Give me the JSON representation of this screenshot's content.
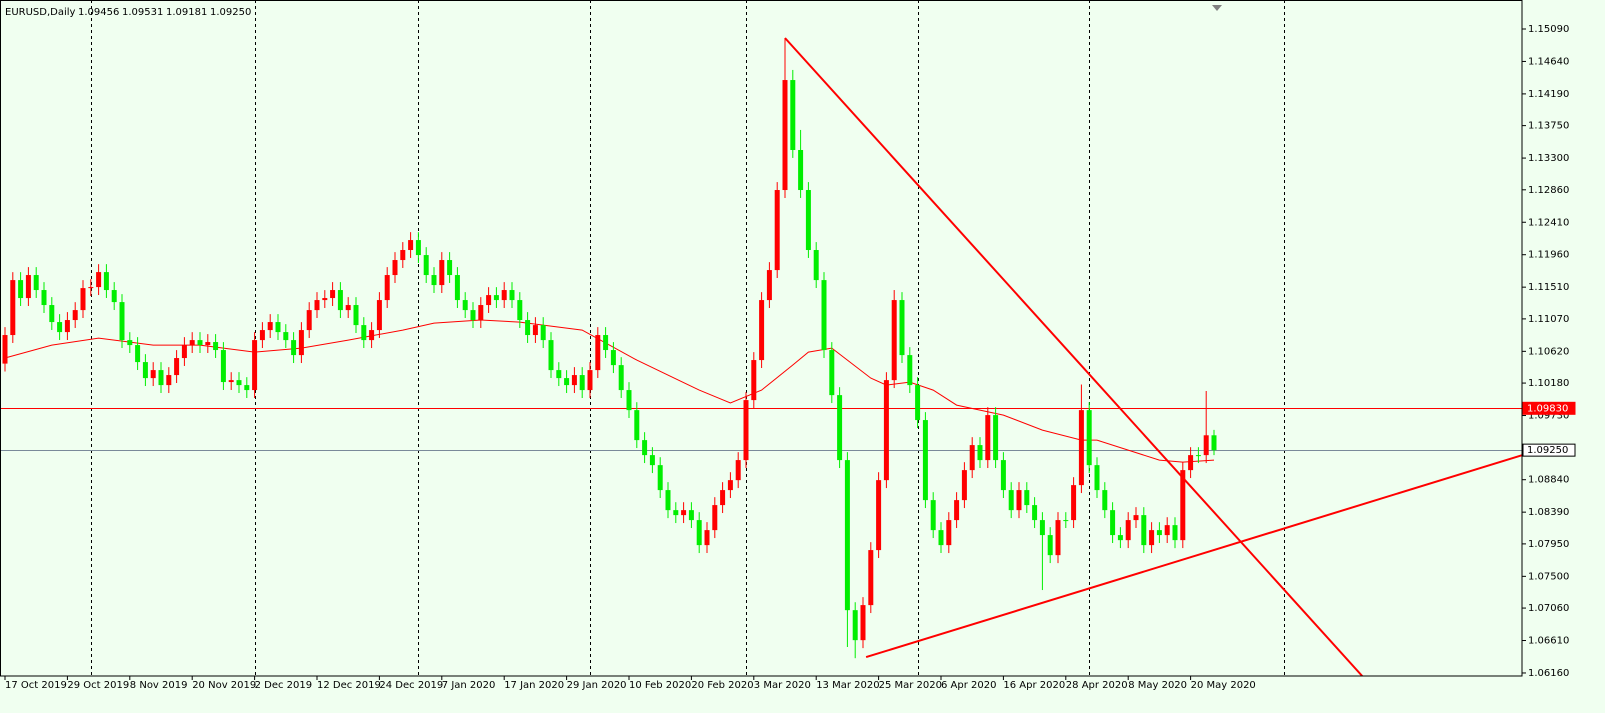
{
  "chart_data": {
    "type": "candlestick",
    "title": "EURUSD,Daily",
    "ohlc_labels": [
      "1.09456",
      "1.09531",
      "1.09181",
      "1.09250"
    ],
    "up_color": "#ff0000",
    "down_color": "#00ee00",
    "ylim": [
      1.06118,
      1.15492
    ],
    "yticks": [
      {
        "value": 1.1509,
        "label": "1.15090"
      },
      {
        "value": 1.1464,
        "label": "1.14640"
      },
      {
        "value": 1.1419,
        "label": "1.14190"
      },
      {
        "value": 1.1375,
        "label": "1.13750"
      },
      {
        "value": 1.133,
        "label": "1.13300"
      },
      {
        "value": 1.1286,
        "label": "1.12860"
      },
      {
        "value": 1.1241,
        "label": "1.12410"
      },
      {
        "value": 1.1196,
        "label": "1.11960"
      },
      {
        "value": 1.1151,
        "label": "1.11510"
      },
      {
        "value": 1.1107,
        "label": "1.11070"
      },
      {
        "value": 1.1062,
        "label": "1.10620"
      },
      {
        "value": 1.1018,
        "label": "1.10180"
      },
      {
        "value": 1.0973,
        "label": "1.09730"
      },
      {
        "value": 1.0884,
        "label": "1.08840"
      },
      {
        "value": 1.0839,
        "label": "1.08390"
      },
      {
        "value": 1.0795,
        "label": "1.07950"
      },
      {
        "value": 1.075,
        "label": "1.07500"
      },
      {
        "value": 1.0706,
        "label": "1.07060"
      },
      {
        "value": 1.0661,
        "label": "1.06610"
      },
      {
        "value": 1.0616,
        "label": "1.06160"
      }
    ],
    "separators": [
      11,
      32,
      53,
      75,
      95,
      117,
      139,
      164
    ],
    "categories": [
      "17 Oct 2019",
      null,
      null,
      null,
      null,
      null,
      null,
      null,
      "29 Oct 2019",
      null,
      null,
      null,
      null,
      null,
      null,
      null,
      "8 Nov 2019",
      null,
      null,
      null,
      null,
      null,
      null,
      null,
      "20 Nov 2019",
      null,
      null,
      null,
      null,
      null,
      null,
      null,
      "2 Dec 2019",
      null,
      null,
      null,
      null,
      null,
      null,
      null,
      "12 Dec 2019",
      null,
      null,
      null,
      null,
      null,
      null,
      null,
      "24 Dec 2019",
      null,
      null,
      null,
      null,
      null,
      null,
      null,
      "7 Jan 2020",
      null,
      null,
      null,
      null,
      null,
      null,
      null,
      "17 Jan 2020",
      null,
      null,
      null,
      null,
      null,
      null,
      null,
      "29 Jan 2020",
      null,
      null,
      null,
      null,
      null,
      null,
      null,
      "10 Feb 2020",
      null,
      null,
      null,
      null,
      null,
      null,
      null,
      "20 Feb 2020",
      null,
      null,
      null,
      null,
      null,
      null,
      null,
      "3 Mar 2020",
      null,
      null,
      null,
      null,
      null,
      null,
      null,
      "13 Mar 2020",
      null,
      null,
      null,
      null,
      null,
      null,
      null,
      "25 Mar 2020",
      null,
      null,
      null,
      null,
      null,
      null,
      null,
      "6 Apr 2020",
      null,
      null,
      null,
      null,
      null,
      null,
      null,
      "16 Apr 2020",
      null,
      null,
      null,
      null,
      null,
      null,
      null,
      "28 Apr 2020",
      null,
      null,
      null,
      null,
      null,
      null,
      null,
      "8 May 2020",
      null,
      null,
      null,
      null,
      null,
      null,
      null,
      "20 May 2020",
      null,
      null,
      null
    ],
    "open": [
      1.1045,
      1.10846,
      1.11608,
      1.11359,
      1.11678,
      1.1147,
      1.11262,
      1.11026,
      1.10887,
      1.11054,
      1.11192,
      1.11497,
      1.11511,
      1.11719,
      1.1147,
      1.11303,
      1.10776,
      1.10707,
      1.10471,
      1.10249,
      1.1036,
      1.10152,
      1.10291,
      1.10527,
      1.10707,
      1.10776,
      1.10707,
      1.10749,
      1.10638,
      1.10194,
      1.10221,
      1.10152,
      1.10083,
      1.10776,
      1.10915,
      1.11026,
      1.10887,
      1.10776,
      1.10568,
      1.10915,
      1.11192,
      1.11331,
      1.11359,
      1.1147,
      1.11192,
      1.11262,
      1.10984,
      1.10776,
      1.10915,
      1.11331,
      1.11678,
      1.11886,
      1.12025,
      1.12163,
      1.11955,
      1.11678,
      1.11539,
      1.11886,
      1.11678,
      1.11331,
      1.11192,
      1.11054,
      1.11262,
      1.114,
      1.11331,
      1.1147,
      1.11331,
      1.11054,
      1.10846,
      1.10984,
      1.10776,
      1.1036,
      1.10249,
      1.10152,
      1.10291,
      1.10083,
      1.1036,
      1.10846,
      1.10638,
      1.10429,
      1.10083,
      1.09805,
      1.09389,
      1.09181,
      1.09042,
      1.08696,
      1.08418,
      1.08349,
      1.08418,
      1.0828,
      1.07933,
      1.08141,
      1.08488,
      1.08696,
      1.08834,
      1.09112,
      1.09944,
      1.10499,
      1.11331,
      1.11747,
      1.12857,
      1.14382,
      1.13412,
      1.12857,
      1.12025,
      1.11608,
      1.10638,
      1.10013,
      1.09112,
      1.07031,
      1.06615,
      1.07101,
      1.07864,
      1.08834,
      1.10221,
      1.11331,
      1.10568,
      1.10152,
      1.09667,
      1.08557,
      1.08141,
      1.07933,
      1.0828,
      1.08557,
      1.08973,
      1.0932,
      1.09112,
      1.09736,
      1.09112,
      1.08696,
      1.08418,
      1.08696,
      1.08488,
      1.0828,
      1.08072,
      1.07794,
      1.0828,
      1.0828,
      1.08765,
      1.09805,
      1.09042,
      1.08696,
      1.08418,
      1.08072,
      1.08002,
      1.0828,
      1.08349,
      1.07933,
      1.08141,
      1.08072,
      1.0821,
      1.08002,
      1.08973,
      1.09181,
      1.09181,
      1.09456
    ],
    "high": [
      1.10956,
      1.11718,
      1.11718,
      1.11788,
      1.11788,
      1.1158,
      1.11372,
      1.11136,
      1.11164,
      1.11302,
      1.11607,
      1.11621,
      1.11829,
      1.11829,
      1.1158,
      1.11413,
      1.10886,
      1.10817,
      1.10581,
      1.1047,
      1.1047,
      1.10401,
      1.10637,
      1.10817,
      1.10886,
      1.10886,
      1.10859,
      1.10859,
      1.10748,
      1.10331,
      1.10331,
      1.10262,
      1.10886,
      1.11025,
      1.11136,
      1.11136,
      1.10997,
      1.10886,
      1.11025,
      1.11302,
      1.11441,
      1.11469,
      1.1158,
      1.1158,
      1.11372,
      1.11372,
      1.11094,
      1.11025,
      1.11441,
      1.11788,
      1.11996,
      1.12135,
      1.12273,
      1.12273,
      1.12065,
      1.11788,
      1.11996,
      1.11996,
      1.11788,
      1.11441,
      1.11302,
      1.11372,
      1.1151,
      1.1151,
      1.1158,
      1.1158,
      1.11441,
      1.11164,
      1.11094,
      1.11094,
      1.10886,
      1.1047,
      1.10359,
      1.10401,
      1.10401,
      1.1047,
      1.10956,
      1.10956,
      1.10748,
      1.10539,
      1.10193,
      1.09915,
      1.09499,
      1.09291,
      1.09152,
      1.08806,
      1.08528,
      1.08528,
      1.08528,
      1.0839,
      1.08251,
      1.08598,
      1.08806,
      1.08944,
      1.09222,
      1.10054,
      1.10609,
      1.11441,
      1.11857,
      1.12967,
      1.14965,
      1.14522,
      1.1369,
      1.12967,
      1.12135,
      1.11718,
      1.10748,
      1.10123,
      1.09222,
      1.07141,
      1.07211,
      1.07974,
      1.08944,
      1.10331,
      1.1147,
      1.11441,
      1.10678,
      1.10262,
      1.09777,
      1.08667,
      1.08251,
      1.0839,
      1.08667,
      1.09083,
      1.0943,
      1.0943,
      1.09846,
      1.09846,
      1.09222,
      1.08806,
      1.08806,
      1.08806,
      1.08598,
      1.0839,
      1.08182,
      1.0839,
      1.0839,
      1.08875,
      1.1016,
      1.09915,
      1.09152,
      1.08806,
      1.08528,
      1.08182,
      1.0839,
      1.08459,
      1.08459,
      1.08251,
      1.08251,
      1.0832,
      1.0832,
      1.09083,
      1.09291,
      1.09291,
      1.1007,
      1.09531
    ],
    "low": [
      1.1034,
      1.10736,
      1.11249,
      1.11249,
      1.1136,
      1.11152,
      1.10916,
      1.10777,
      1.10777,
      1.10944,
      1.11082,
      1.11387,
      1.11401,
      1.1136,
      1.11193,
      1.10666,
      1.10597,
      1.10361,
      1.10139,
      1.10139,
      1.10042,
      1.10042,
      1.10181,
      1.10417,
      1.10597,
      1.10597,
      1.10597,
      1.10528,
      1.10084,
      1.10084,
      1.10042,
      1.09973,
      1.09973,
      1.10666,
      1.10805,
      1.10777,
      1.10666,
      1.10458,
      1.10458,
      1.10805,
      1.11082,
      1.11221,
      1.11249,
      1.11082,
      1.11082,
      1.10874,
      1.10666,
      1.10666,
      1.10805,
      1.11221,
      1.11568,
      1.11776,
      1.11915,
      1.11845,
      1.11568,
      1.11429,
      1.11429,
      1.11568,
      1.11221,
      1.11082,
      1.10944,
      1.10944,
      1.11152,
      1.11221,
      1.11221,
      1.11221,
      1.10944,
      1.10736,
      1.10736,
      1.10666,
      1.1025,
      1.10139,
      1.10042,
      1.10042,
      1.09973,
      1.09973,
      1.1025,
      1.10528,
      1.10319,
      1.09973,
      1.09695,
      1.09279,
      1.09071,
      1.08932,
      1.08586,
      1.08308,
      1.08239,
      1.08239,
      1.0817,
      1.07823,
      1.07823,
      1.08031,
      1.08378,
      1.08586,
      1.08724,
      1.09002,
      1.09834,
      1.10389,
      1.11221,
      1.11637,
      1.12747,
      1.13302,
      1.12747,
      1.11915,
      1.11498,
      1.10528,
      1.09903,
      1.09002,
      1.06521,
      1.06365,
      1.06505,
      1.06991,
      1.07754,
      1.08724,
      1.10111,
      1.10458,
      1.10042,
      1.09557,
      1.08447,
      1.08031,
      1.07823,
      1.07823,
      1.0817,
      1.08447,
      1.08863,
      1.09002,
      1.09002,
      1.09002,
      1.08586,
      1.08308,
      1.08308,
      1.08378,
      1.0817,
      1.0731,
      1.07684,
      1.07684,
      1.0817,
      1.0817,
      1.08655,
      1.08932,
      1.08586,
      1.08308,
      1.07962,
      1.07892,
      1.07892,
      1.0817,
      1.07823,
      1.07823,
      1.07962,
      1.07962,
      1.07892,
      1.07892,
      1.08863,
      1.09071,
      1.09071,
      1.09181
    ],
    "close": [
      1.10846,
      1.11608,
      1.11359,
      1.11678,
      1.1147,
      1.11262,
      1.11026,
      1.10887,
      1.11054,
      1.11192,
      1.11497,
      1.11511,
      1.11719,
      1.1147,
      1.11303,
      1.10776,
      1.10707,
      1.10471,
      1.10249,
      1.1036,
      1.10152,
      1.10291,
      1.10527,
      1.10707,
      1.10776,
      1.10707,
      1.10749,
      1.10638,
      1.10194,
      1.10221,
      1.10152,
      1.10083,
      1.10776,
      1.10915,
      1.11026,
      1.10887,
      1.10776,
      1.10568,
      1.10915,
      1.11192,
      1.11331,
      1.11359,
      1.1147,
      1.11192,
      1.11262,
      1.10984,
      1.10776,
      1.10915,
      1.11331,
      1.11678,
      1.11886,
      1.12025,
      1.12163,
      1.11955,
      1.11678,
      1.11539,
      1.11886,
      1.11678,
      1.11331,
      1.11192,
      1.11054,
      1.11262,
      1.114,
      1.11331,
      1.1147,
      1.11331,
      1.11054,
      1.10846,
      1.10984,
      1.10776,
      1.1036,
      1.10249,
      1.10152,
      1.10291,
      1.10083,
      1.1036,
      1.10846,
      1.10638,
      1.10429,
      1.10083,
      1.09805,
      1.09389,
      1.09181,
      1.09042,
      1.08696,
      1.08418,
      1.08349,
      1.08418,
      1.0828,
      1.07933,
      1.08141,
      1.08488,
      1.08696,
      1.08834,
      1.09112,
      1.09944,
      1.10499,
      1.11331,
      1.11747,
      1.12857,
      1.14382,
      1.13412,
      1.12857,
      1.12025,
      1.11608,
      1.10638,
      1.10013,
      1.09112,
      1.07031,
      1.06615,
      1.07101,
      1.07864,
      1.08834,
      1.10221,
      1.11331,
      1.10568,
      1.10152,
      1.09667,
      1.08557,
      1.08141,
      1.07933,
      1.0828,
      1.08557,
      1.08973,
      1.0932,
      1.09112,
      1.09736,
      1.09112,
      1.08696,
      1.08418,
      1.08696,
      1.08488,
      1.0828,
      1.08072,
      1.07794,
      1.0828,
      1.0828,
      1.08765,
      1.09805,
      1.09042,
      1.08696,
      1.08418,
      1.08072,
      1.08002,
      1.0828,
      1.08349,
      1.07933,
      1.08141,
      1.08072,
      1.0821,
      1.08002,
      1.08973,
      1.09181,
      1.09181,
      1.09456,
      1.0925
    ],
    "ma": {
      "color": "#ff0000",
      "x": [
        0,
        6,
        12,
        19,
        25,
        32,
        38,
        44,
        51,
        55,
        61,
        66,
        74,
        81,
        89,
        93,
        97,
        101,
        103,
        106,
        108,
        111,
        113,
        116,
        119,
        122,
        128,
        133,
        138,
        140,
        144,
        148,
        151,
        155
      ],
      "values": [
        1.10527,
        1.10707,
        1.10804,
        1.10707,
        1.10707,
        1.1061,
        1.10665,
        1.10776,
        1.10915,
        1.11012,
        1.11054,
        1.11026,
        1.10915,
        1.10499,
        1.10083,
        1.09903,
        1.10083,
        1.1043,
        1.1061,
        1.10665,
        1.10499,
        1.10249,
        1.10152,
        1.10194,
        1.10083,
        1.09875,
        1.09736,
        1.09528,
        1.09389,
        1.09389,
        1.09251,
        1.09112,
        1.09084,
        1.09112
      ]
    },
    "hlines": [
      {
        "value": 1.0983,
        "label": "1.09830",
        "color": "#ff0000"
      },
      {
        "value": 1.0925,
        "label": "1.09250",
        "color": "#7a8a9a"
      }
    ],
    "trendlines": [
      {
        "color": "#ff0000",
        "x": [
          100,
          174
        ],
        "values": [
          1.14965,
          1.06118
        ]
      },
      {
        "color": "#ff0000",
        "x": [
          110.4,
          194.5
        ],
        "values": [
          1.0638,
          1.0918
        ]
      }
    ]
  }
}
